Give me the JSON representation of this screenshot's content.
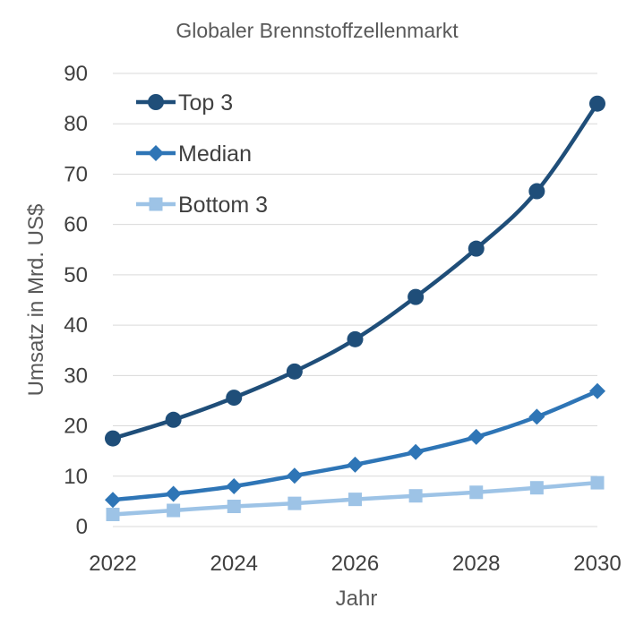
{
  "chart_data": {
    "type": "line",
    "title": "Globaler Brennstoffzellenmarkt",
    "xlabel": "Jahr",
    "ylabel": "Umsatz in Mrd. US$",
    "x": [
      2022,
      2023,
      2024,
      2025,
      2026,
      2027,
      2028,
      2029,
      2030
    ],
    "xticks": [
      "2022",
      "2024",
      "2026",
      "2028",
      "2030"
    ],
    "xlim": [
      2022,
      2030
    ],
    "ylim": [
      0,
      90
    ],
    "yticks": [
      "0",
      "10",
      "20",
      "30",
      "40",
      "50",
      "60",
      "70",
      "80",
      "90"
    ],
    "grid": "horizontal",
    "legend_position": "top-left",
    "series": [
      {
        "name": "Top 3",
        "marker": "circle",
        "color": "#1f4e79",
        "values": [
          17.5,
          21.2,
          25.6,
          30.8,
          37.2,
          45.6,
          55.2,
          66.6,
          84.0
        ]
      },
      {
        "name": "Median",
        "marker": "diamond",
        "color": "#2e75b6",
        "values": [
          5.3,
          6.5,
          8.0,
          10.1,
          12.3,
          14.8,
          17.8,
          21.8,
          26.9
        ]
      },
      {
        "name": "Bottom 3",
        "marker": "square",
        "color": "#9dc3e6",
        "values": [
          2.4,
          3.2,
          4.0,
          4.6,
          5.4,
          6.1,
          6.8,
          7.7,
          8.7
        ]
      }
    ]
  }
}
